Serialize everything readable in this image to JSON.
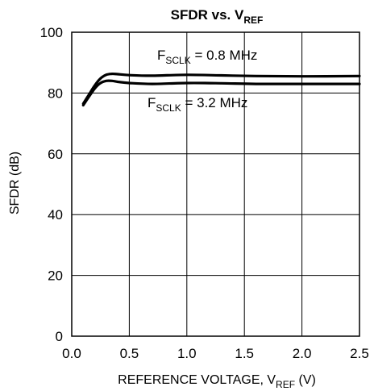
{
  "chart_data": {
    "type": "line",
    "title": {
      "main": "SFDR vs. V",
      "sub": "REF"
    },
    "xlabel": {
      "main": "REFERENCE VOLTAGE, V",
      "sub": "REF",
      "suffix": " (V)"
    },
    "ylabel": "SFDR (dB)",
    "xlim": [
      0.0,
      2.5
    ],
    "ylim": [
      0,
      100
    ],
    "xticks": [
      "0.0",
      "0.5",
      "1.0",
      "1.5",
      "2.0",
      "2.5"
    ],
    "yticks": [
      "0",
      "20",
      "40",
      "60",
      "80",
      "100"
    ],
    "grid": true,
    "series": [
      {
        "name": {
          "main": "F",
          "sub": "SCLK",
          "suffix": " = 0.8 MHz"
        },
        "x": [
          0.1,
          0.15,
          0.2,
          0.25,
          0.3,
          0.35,
          0.4,
          0.5,
          0.7,
          1.0,
          1.3,
          1.6,
          2.0,
          2.5
        ],
        "y": [
          76.5,
          79.5,
          82.5,
          84.8,
          86.0,
          86.3,
          86.2,
          85.9,
          85.7,
          86.0,
          85.8,
          85.6,
          85.5,
          85.6
        ]
      },
      {
        "name": {
          "main": "F",
          "sub": "SCLK",
          "suffix": " = 3.2 MHz"
        },
        "x": [
          0.1,
          0.15,
          0.2,
          0.25,
          0.3,
          0.35,
          0.4,
          0.5,
          0.7,
          1.0,
          1.3,
          1.6,
          2.0,
          2.5
        ],
        "y": [
          76.0,
          78.8,
          81.5,
          83.3,
          84.0,
          84.0,
          83.7,
          83.3,
          83.0,
          83.3,
          83.2,
          83.0,
          83.0,
          83.0
        ]
      }
    ]
  },
  "colors": {
    "line": "#000000",
    "grid": "#000000",
    "background": "#ffffff"
  }
}
